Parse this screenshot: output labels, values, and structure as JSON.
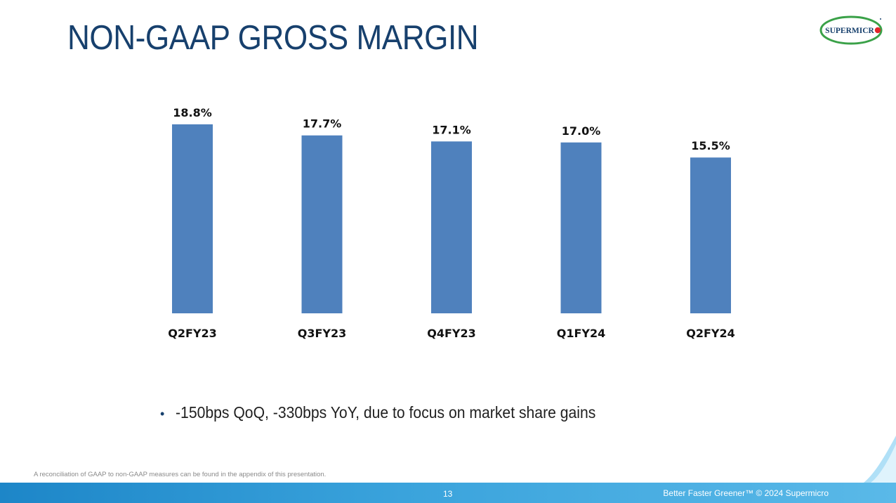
{
  "slide": {
    "title": "NON-GAAP GROSS MARGIN",
    "logo_text": "SUPERMICRO",
    "bullet": "-150bps QoQ, -330bps YoY, due to focus on market share gains",
    "footnote": "A reconciliation of GAAP to non-GAAP measures can be found in the appendix of this presentation.",
    "page_number": "13",
    "tagline": "Better Faster Greener™  © 2024 Supermicro"
  },
  "colors": {
    "title": "#17406d",
    "bar": "#4f81bd",
    "footer": "#3aa3dc",
    "logo_green": "#3aa148",
    "logo_red": "#e0262a"
  },
  "chart_data": {
    "type": "bar",
    "categories": [
      "Q2FY23",
      "Q3FY23",
      "Q4FY23",
      "Q1FY24",
      "Q2FY24"
    ],
    "values": [
      18.8,
      17.7,
      17.1,
      17.0,
      15.5
    ],
    "data_labels": [
      "18.8%",
      "17.7%",
      "17.1%",
      "17.0%",
      "15.5%"
    ],
    "ylim": [
      0,
      18.8
    ],
    "grid": false,
    "legend": "none"
  }
}
